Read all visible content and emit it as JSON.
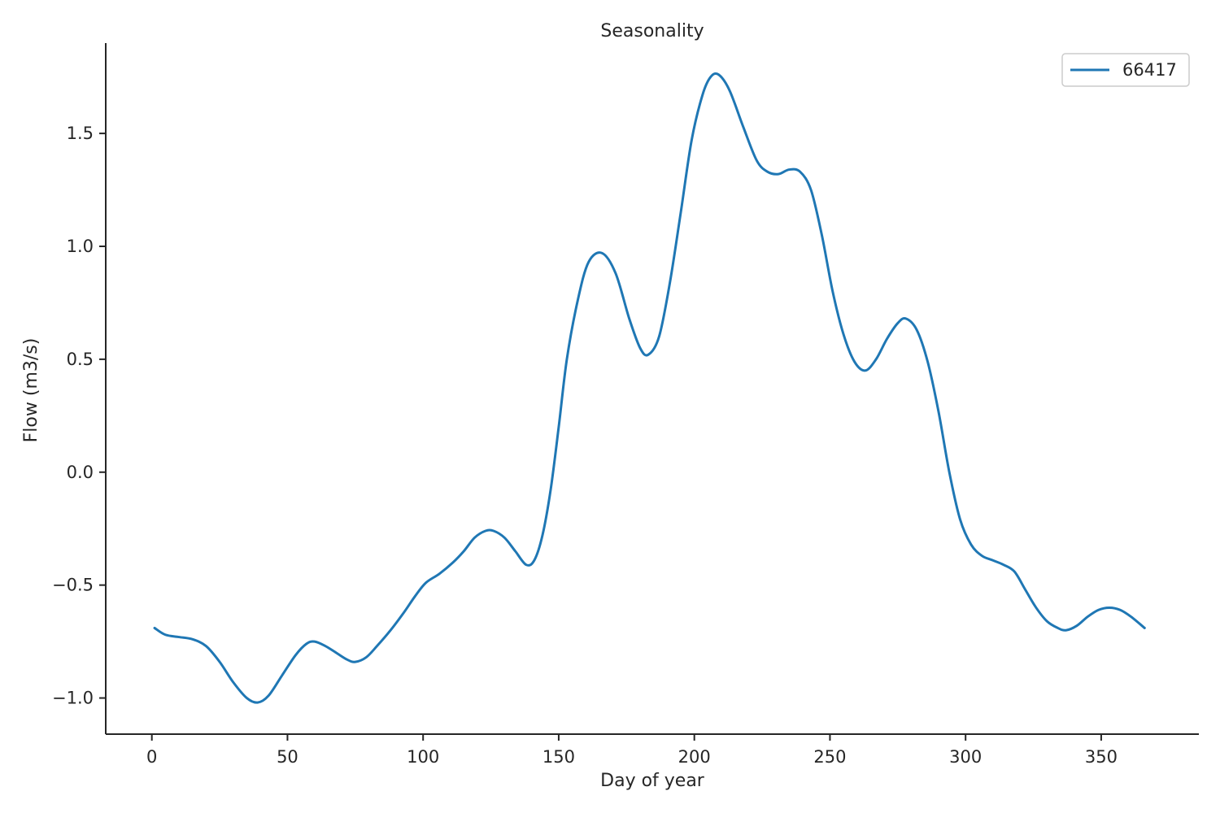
{
  "chart_data": {
    "type": "line",
    "title": "Seasonality",
    "xlabel": "Day of year",
    "ylabel": "Flow (m3/s)",
    "xlim": [
      -17,
      386
    ],
    "ylim": [
      -1.16,
      1.9
    ],
    "x_ticks": [
      0,
      50,
      100,
      150,
      200,
      250,
      300,
      350
    ],
    "x_tick_labels": [
      "0",
      "50",
      "100",
      "150",
      "200",
      "250",
      "300",
      "350"
    ],
    "y_ticks": [
      -1.0,
      -0.5,
      0.0,
      0.5,
      1.0,
      1.5
    ],
    "y_tick_labels": [
      "−1.0",
      "−0.5",
      "0.0",
      "0.5",
      "1.0",
      "1.5"
    ],
    "grid": false,
    "legend_position": "top-right",
    "series": [
      {
        "name": "66417",
        "color": "#1f77b4",
        "points": [
          [
            1,
            -0.69
          ],
          [
            5,
            -0.72
          ],
          [
            10,
            -0.73
          ],
          [
            15,
            -0.74
          ],
          [
            20,
            -0.77
          ],
          [
            25,
            -0.84
          ],
          [
            30,
            -0.93
          ],
          [
            35,
            -1.0
          ],
          [
            39,
            -1.02
          ],
          [
            43,
            -0.99
          ],
          [
            48,
            -0.9
          ],
          [
            53,
            -0.81
          ],
          [
            57,
            -0.76
          ],
          [
            60,
            -0.75
          ],
          [
            64,
            -0.77
          ],
          [
            68,
            -0.8
          ],
          [
            72,
            -0.83
          ],
          [
            75,
            -0.84
          ],
          [
            79,
            -0.82
          ],
          [
            83,
            -0.77
          ],
          [
            88,
            -0.7
          ],
          [
            93,
            -0.62
          ],
          [
            97,
            -0.55
          ],
          [
            101,
            -0.49
          ],
          [
            106,
            -0.45
          ],
          [
            111,
            -0.4
          ],
          [
            115,
            -0.35
          ],
          [
            119,
            -0.29
          ],
          [
            123,
            -0.26
          ],
          [
            126,
            -0.26
          ],
          [
            130,
            -0.29
          ],
          [
            134,
            -0.35
          ],
          [
            138,
            -0.41
          ],
          [
            141,
            -0.39
          ],
          [
            144,
            -0.28
          ],
          [
            147,
            -0.08
          ],
          [
            150,
            0.2
          ],
          [
            153,
            0.5
          ],
          [
            157,
            0.76
          ],
          [
            161,
            0.93
          ],
          [
            166,
            0.97
          ],
          [
            171,
            0.88
          ],
          [
            176,
            0.68
          ],
          [
            180,
            0.55
          ],
          [
            183,
            0.52
          ],
          [
            187,
            0.6
          ],
          [
            191,
            0.84
          ],
          [
            195,
            1.15
          ],
          [
            199,
            1.47
          ],
          [
            203,
            1.67
          ],
          [
            206,
            1.75
          ],
          [
            209,
            1.76
          ],
          [
            213,
            1.69
          ],
          [
            218,
            1.53
          ],
          [
            223,
            1.38
          ],
          [
            227,
            1.33
          ],
          [
            231,
            1.32
          ],
          [
            235,
            1.34
          ],
          [
            239,
            1.33
          ],
          [
            243,
            1.25
          ],
          [
            247,
            1.05
          ],
          [
            251,
            0.8
          ],
          [
            255,
            0.61
          ],
          [
            259,
            0.49
          ],
          [
            263,
            0.45
          ],
          [
            267,
            0.5
          ],
          [
            271,
            0.59
          ],
          [
            275,
            0.66
          ],
          [
            278,
            0.68
          ],
          [
            282,
            0.63
          ],
          [
            286,
            0.49
          ],
          [
            290,
            0.27
          ],
          [
            294,
            0.0
          ],
          [
            298,
            -0.21
          ],
          [
            302,
            -0.32
          ],
          [
            306,
            -0.37
          ],
          [
            310,
            -0.39
          ],
          [
            314,
            -0.41
          ],
          [
            318,
            -0.44
          ],
          [
            322,
            -0.52
          ],
          [
            326,
            -0.6
          ],
          [
            330,
            -0.66
          ],
          [
            334,
            -0.69
          ],
          [
            337,
            -0.7
          ],
          [
            341,
            -0.68
          ],
          [
            345,
            -0.64
          ],
          [
            349,
            -0.61
          ],
          [
            353,
            -0.6
          ],
          [
            357,
            -0.61
          ],
          [
            361,
            -0.64
          ],
          [
            366,
            -0.69
          ]
        ]
      }
    ]
  }
}
